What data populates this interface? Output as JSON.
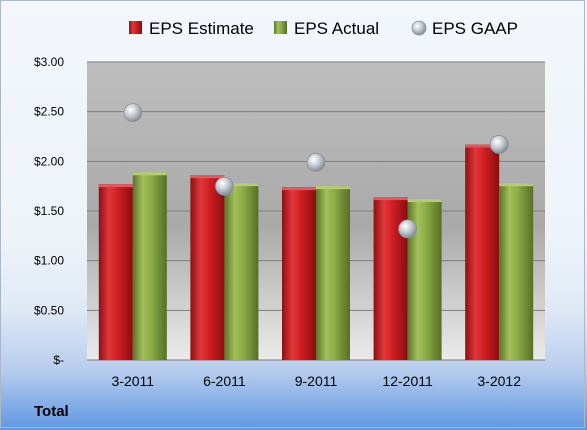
{
  "chart_data": {
    "type": "bar",
    "categories": [
      "3-2011",
      "6-2011",
      "9-2011",
      "12-2011",
      "3-2012"
    ],
    "series": [
      {
        "name": "EPS Estimate",
        "kind": "bar",
        "color": "#c0191c",
        "values": [
          1.77,
          1.86,
          1.74,
          1.64,
          2.17
        ]
      },
      {
        "name": "EPS Actual",
        "kind": "bar",
        "color": "#7a9a3a",
        "values": [
          1.89,
          1.78,
          1.75,
          1.62,
          1.78
        ]
      },
      {
        "name": "EPS GAAP",
        "kind": "marker",
        "color": "#b8bfc8",
        "values": [
          2.49,
          1.75,
          1.99,
          1.32,
          2.17
        ]
      }
    ],
    "ylim": [
      0,
      3
    ],
    "yticks": [
      0,
      0.5,
      1,
      1.5,
      2,
      2.5,
      3
    ],
    "ytick_labels": [
      "$-",
      "$0.50",
      "$1.00",
      "$1.50",
      "$2.00",
      "$2.50",
      "$3.00"
    ],
    "legend_position": "top",
    "grid": true,
    "footer_label": "Total"
  }
}
